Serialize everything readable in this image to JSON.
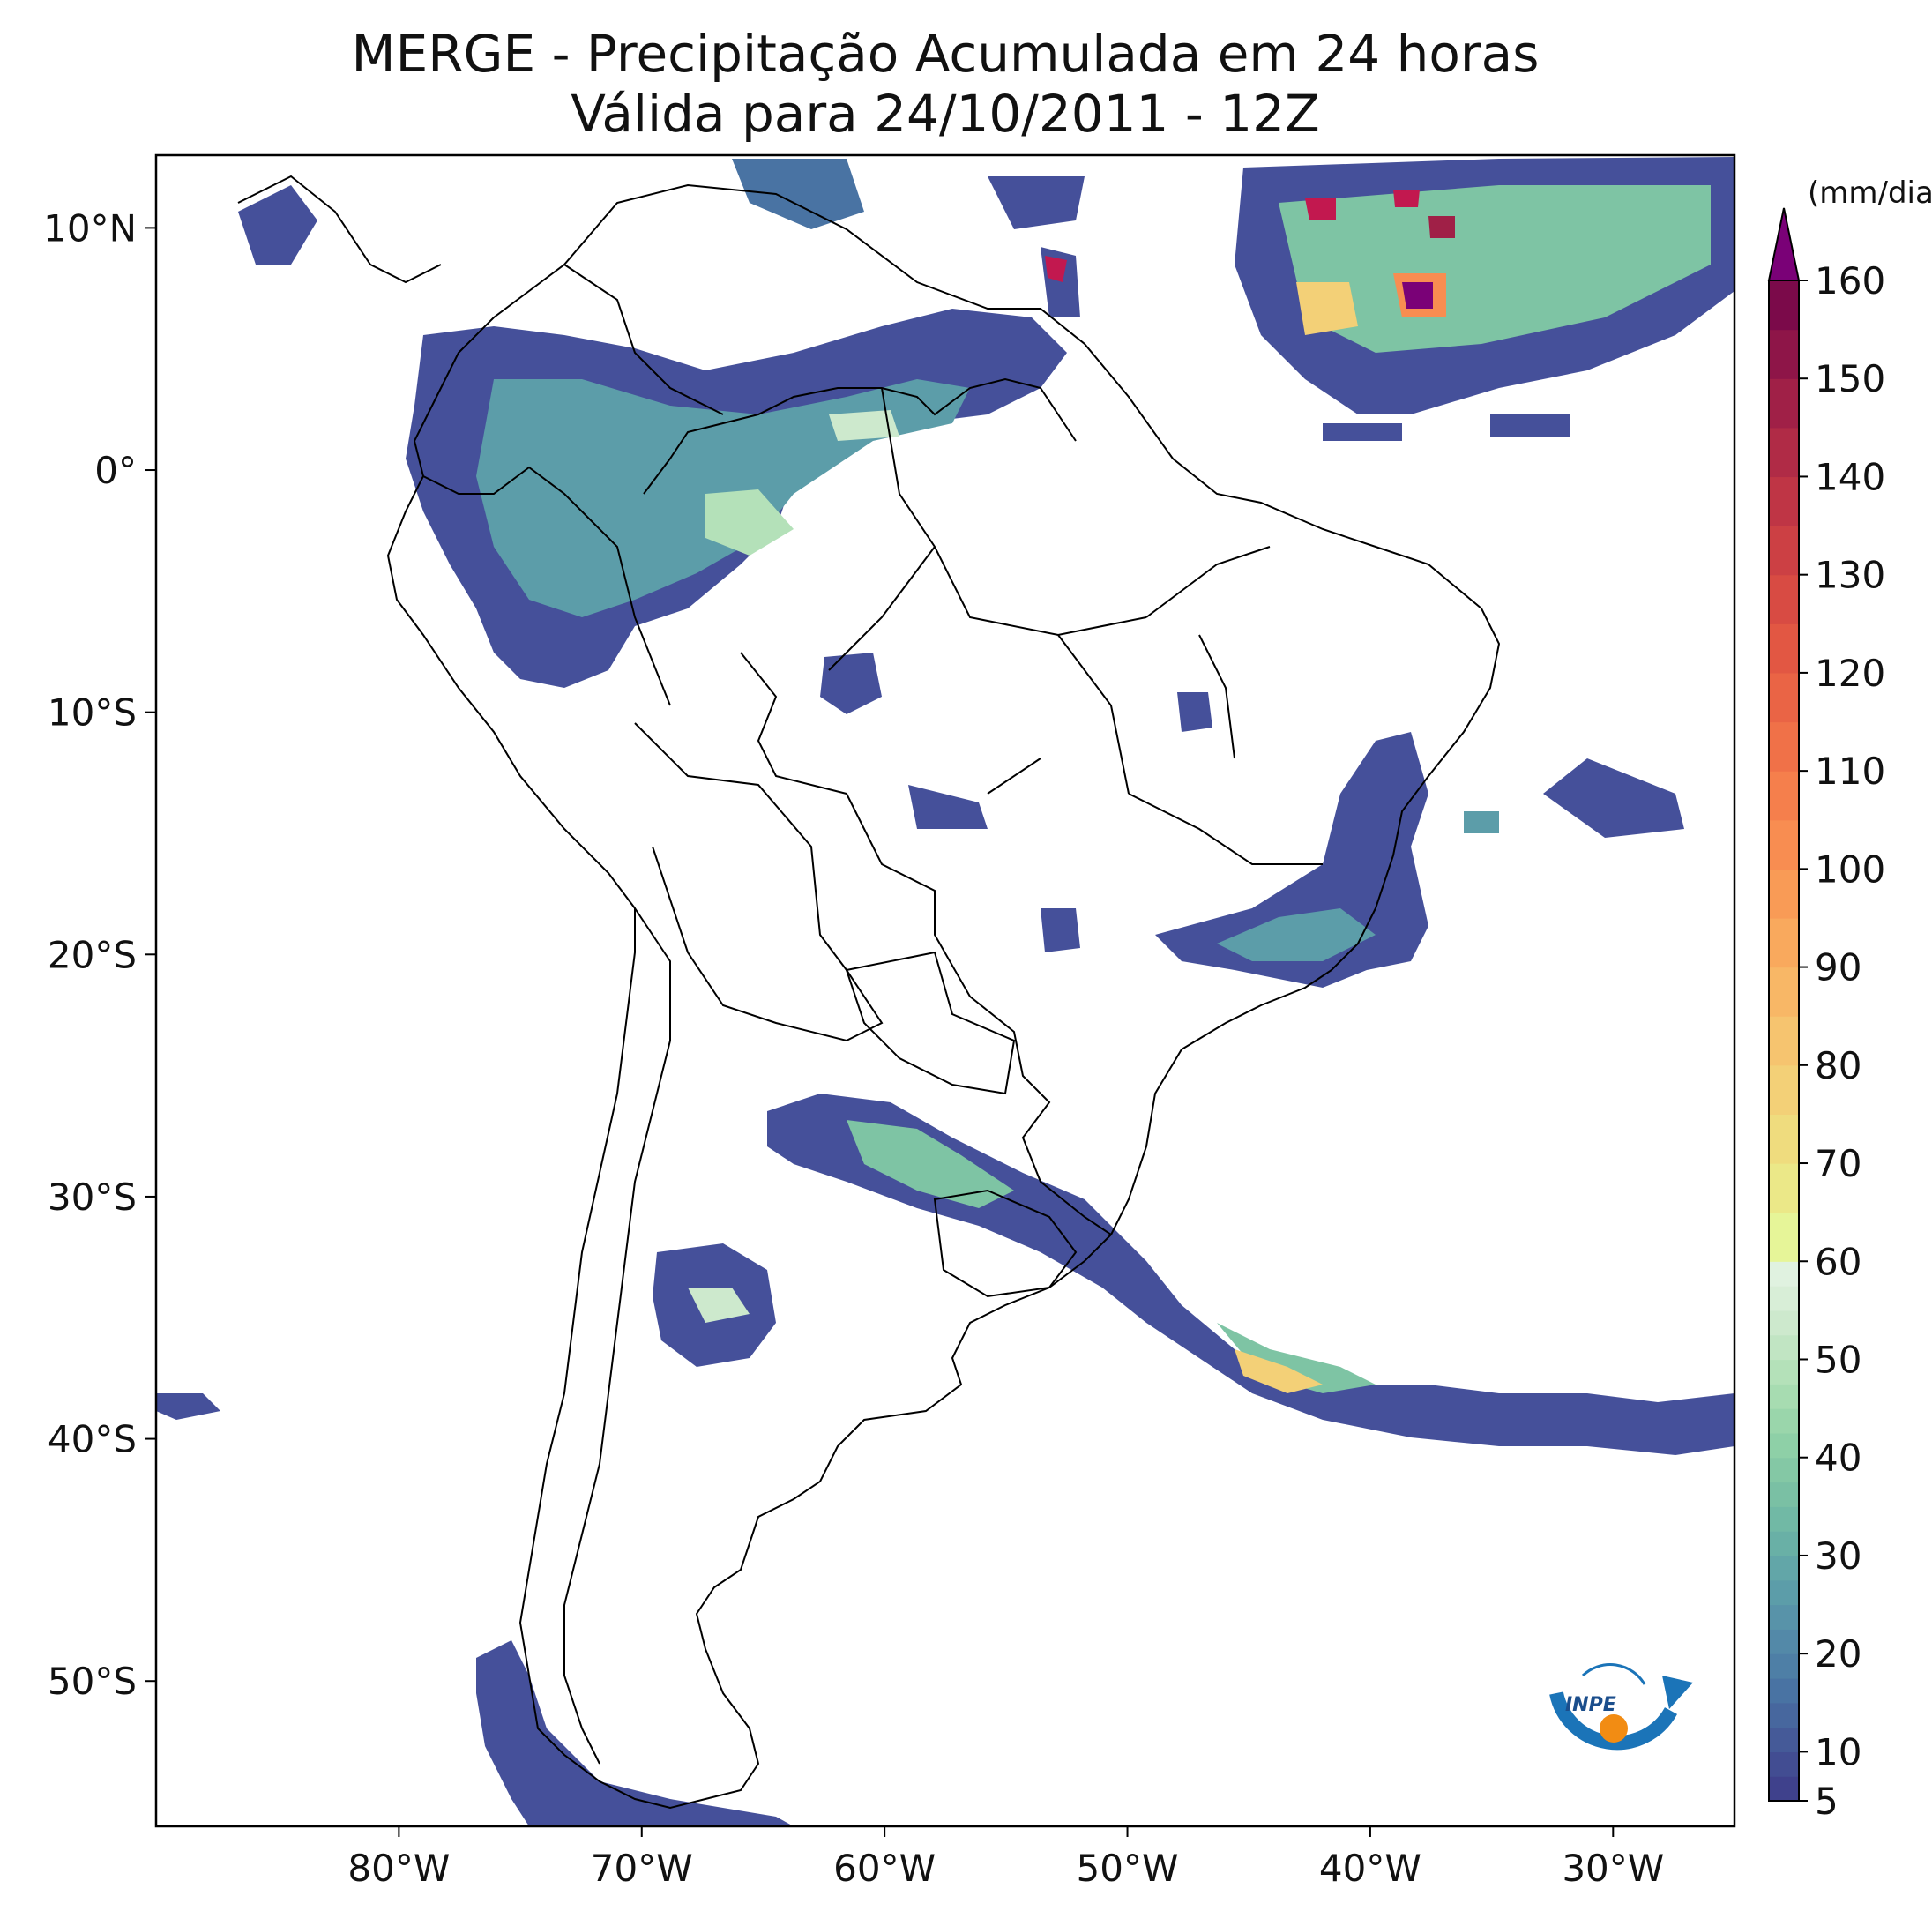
{
  "title_line1": "MERGE - Precipitação Acumulada em 24 horas",
  "title_line2": "Válida para 24/10/2011 - 12Z",
  "map": {
    "lon_range": [
      -90,
      -25
    ],
    "lat_range": [
      -56,
      13
    ],
    "lon_ticks": [
      {
        "value": -80,
        "label": "80°W"
      },
      {
        "value": -70,
        "label": "70°W"
      },
      {
        "value": -60,
        "label": "60°W"
      },
      {
        "value": -50,
        "label": "50°W"
      },
      {
        "value": -40,
        "label": "40°W"
      },
      {
        "value": -30,
        "label": "30°W"
      }
    ],
    "lat_ticks": [
      {
        "value": 10,
        "label": "10°N"
      },
      {
        "value": 0,
        "label": "0°"
      },
      {
        "value": -10,
        "label": "10°S"
      },
      {
        "value": -20,
        "label": "20°S"
      },
      {
        "value": -30,
        "label": "30°S"
      },
      {
        "value": -40,
        "label": "40°S"
      },
      {
        "value": -50,
        "label": "50°S"
      }
    ]
  },
  "colorbar": {
    "unit": "(mm/dia)",
    "min": 5,
    "max": 160,
    "extend": "max",
    "tick_labels": [
      "5",
      "10",
      "20",
      "30",
      "40",
      "50",
      "60",
      "70",
      "80",
      "90",
      "100",
      "110",
      "120",
      "130",
      "140",
      "150",
      "160"
    ],
    "levels": [
      5,
      7.5,
      10,
      12.5,
      15,
      17.5,
      20,
      22.5,
      25,
      27.5,
      30,
      32.5,
      35,
      37.5,
      40,
      42.5,
      45,
      47.5,
      50,
      52.5,
      55,
      57.5,
      60,
      65,
      70,
      75,
      80,
      85,
      90,
      95,
      100,
      105,
      110,
      115,
      120,
      125,
      130,
      135,
      140,
      145,
      150,
      155,
      160
    ],
    "colors": [
      "#3f418c",
      "#424d92",
      "#455a98",
      "#47679e",
      "#4973a3",
      "#4e7fa6",
      "#5389a8",
      "#5893a9",
      "#5c9da9",
      "#62a6a8",
      "#69b0a6",
      "#71b9a5",
      "#7ac0a4",
      "#84c8a5",
      "#8ed0a7",
      "#9ad6ab",
      "#a7dcb1",
      "#b4e1b9",
      "#c1e5c3",
      "#cde9cd",
      "#d8eed7",
      "#e0f2e0",
      "#e6f598",
      "#ebe888",
      "#efdc7e",
      "#f3d077",
      "#f6c46f",
      "#f8b766",
      "#f9a95d",
      "#f99b56",
      "#f88d51",
      "#f57f4c",
      "#f07148",
      "#ea6445",
      "#e25743",
      "#d84b43",
      "#cc4044",
      "#bf3545",
      "#b02b46",
      "#a02047",
      "#8e1548",
      "#7b0a4a"
    ],
    "extend_color": "#7a0177"
  },
  "colors": {
    "low_precip": "#45509a",
    "mid_precip": "#7ec4a4",
    "high_precip": "#f3d077",
    "extreme_precip": "#c2184f"
  },
  "logo": {
    "text": "INPE",
    "arc_color": "#1b74b8",
    "dot_color": "#f28c13"
  }
}
